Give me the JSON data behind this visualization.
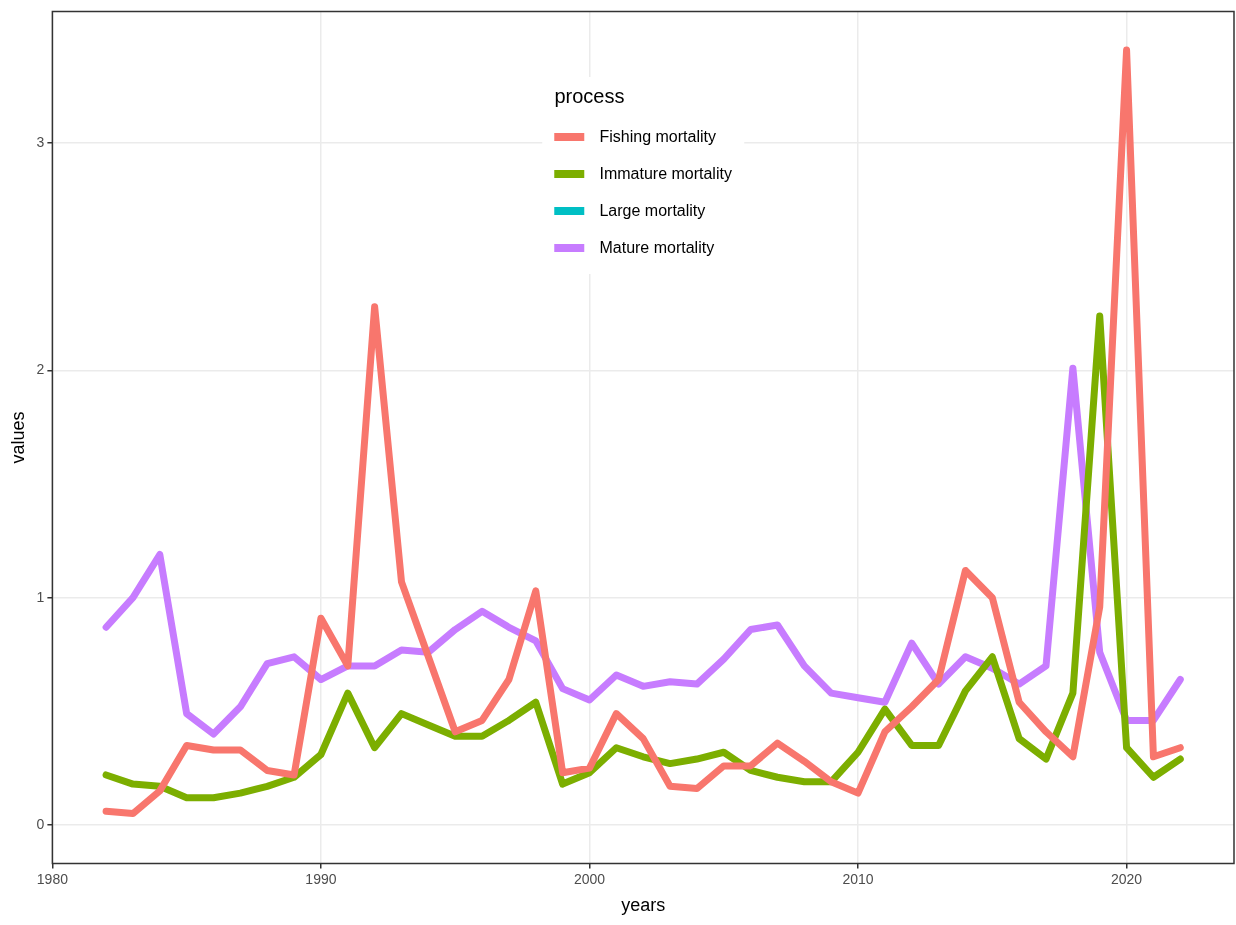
{
  "chart_data": {
    "type": "line",
    "xlabel": "years",
    "ylabel": "values",
    "legend_title": "process",
    "legend": "top",
    "x": [
      1982,
      1983,
      1984,
      1985,
      1986,
      1987,
      1988,
      1989,
      1990,
      1991,
      1992,
      1993,
      1994,
      1995,
      1996,
      1997,
      1998,
      1999,
      2000,
      2001,
      2002,
      2003,
      2004,
      2005,
      2006,
      2007,
      2008,
      2009,
      2010,
      2011,
      2012,
      2013,
      2014,
      2015,
      2016,
      2017,
      2018,
      2019,
      2020,
      2021,
      2022
    ],
    "series": [
      {
        "name": "Fishing mortality",
        "color": "#f8766d",
        "values": [
          0.06,
          0.05,
          0.15,
          0.35,
          0.33,
          0.33,
          0.24,
          0.22,
          0.91,
          0.7,
          2.28,
          1.07,
          0.74,
          0.41,
          0.46,
          0.64,
          1.03,
          0.23,
          0.25,
          0.49,
          0.38,
          0.17,
          0.16,
          0.26,
          0.26,
          0.36,
          0.28,
          0.19,
          0.14,
          0.41,
          0.52,
          0.64,
          1.12,
          1.0,
          0.54,
          0.41,
          0.3,
          0.96,
          3.41,
          0.3,
          0.34
        ]
      },
      {
        "name": "Immature mortality",
        "color": "#7cae00",
        "values": [
          0.22,
          0.18,
          0.17,
          0.12,
          0.12,
          0.14,
          0.17,
          0.21,
          0.31,
          0.58,
          0.34,
          0.49,
          0.44,
          0.39,
          0.39,
          0.46,
          0.54,
          0.18,
          0.23,
          0.34,
          0.3,
          0.27,
          0.29,
          0.32,
          0.24,
          0.21,
          0.19,
          0.19,
          0.32,
          0.51,
          0.35,
          0.35,
          0.59,
          0.74,
          0.38,
          0.29,
          0.58,
          2.24,
          0.34,
          0.21,
          0.29
        ]
      },
      {
        "name": "Large mortality",
        "color": "#00bfc4",
        "values": [
          null,
          null,
          null,
          null,
          null,
          null,
          null,
          null,
          null,
          null,
          null,
          null,
          null,
          null,
          null,
          null,
          null,
          null,
          null,
          null,
          null,
          null,
          null,
          null,
          null,
          null,
          null,
          null,
          null,
          null,
          null,
          null,
          null,
          null,
          null,
          null,
          null,
          null,
          null,
          null,
          null
        ]
      },
      {
        "name": "Mature mortality",
        "color": "#c77cff",
        "values": [
          0.87,
          1.0,
          1.19,
          0.49,
          0.4,
          0.52,
          0.71,
          0.74,
          0.64,
          0.7,
          0.7,
          0.77,
          0.76,
          0.86,
          0.94,
          0.87,
          0.81,
          0.6,
          0.55,
          0.66,
          0.61,
          0.63,
          0.62,
          0.73,
          0.86,
          0.88,
          0.7,
          0.58,
          0.56,
          0.54,
          0.8,
          0.62,
          0.74,
          0.69,
          0.62,
          0.7,
          2.01,
          0.76,
          0.46,
          0.46,
          0.64
        ]
      }
    ],
    "xlim": [
      1980,
      2024
    ],
    "xticks": [
      1980,
      1990,
      2000,
      2010,
      2020
    ],
    "ylim": [
      -0.17,
      3.58
    ],
    "yticks": [
      0,
      1,
      2,
      3
    ],
    "grid": true,
    "marker": "none",
    "line_style": "solid"
  }
}
